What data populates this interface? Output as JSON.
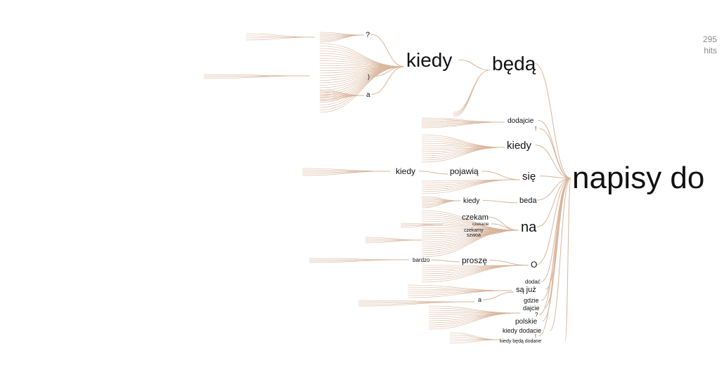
{
  "hits": {
    "count": "295",
    "label": "hits"
  },
  "colors": {
    "edge": "#d8b49a",
    "text": "#111111",
    "hits": "#8a8a8a"
  },
  "root": "napisy do",
  "branches": [
    {
      "id": "beda-diac",
      "text": "będą"
    },
    {
      "id": "kiedy-upper",
      "text": "kiedy"
    },
    {
      "id": "question-upper",
      "text": "?"
    },
    {
      "id": "a-upper",
      "text": "a"
    },
    {
      "id": "paren-upper",
      "text": ")"
    },
    {
      "id": "dodajcie",
      "text": "dodajcie"
    },
    {
      "id": "exclaim",
      "text": "!"
    },
    {
      "id": "kiedy-mid",
      "text": "kiedy"
    },
    {
      "id": "sie",
      "text": "się"
    },
    {
      "id": "pojawia",
      "text": "pojawią"
    },
    {
      "id": "kiedy-left",
      "text": "kiedy"
    },
    {
      "id": "beda",
      "text": "beda"
    },
    {
      "id": "kiedy-small",
      "text": "kiedy"
    },
    {
      "id": "na",
      "text": "na"
    },
    {
      "id": "czekam",
      "text": "czekam"
    },
    {
      "id": "czekamy",
      "text": "czekamy"
    },
    {
      "id": "szwoa",
      "text": "szwoa"
    },
    {
      "id": "czekacie",
      "text": "czekacie"
    },
    {
      "id": "o",
      "text": "O"
    },
    {
      "id": "prosze",
      "text": "proszę"
    },
    {
      "id": "bardzo",
      "text": "bardzo"
    },
    {
      "id": "dodac",
      "text": "dodać"
    },
    {
      "id": "sa-juz",
      "text": "są  już"
    },
    {
      "id": "a-lower",
      "text": "a"
    },
    {
      "id": "gdzie",
      "text": "gdzie"
    },
    {
      "id": "dajcie",
      "text": "dajcie"
    },
    {
      "id": "q-lower",
      "text": "?"
    },
    {
      "id": "polskie",
      "text": "polskie"
    },
    {
      "id": "kiedy-dodacie",
      "text": "kiedy  dodacie"
    },
    {
      "id": "excl-lower",
      "text": "!"
    },
    {
      "id": "kiedy-beda-dodane",
      "text": "kiedy     będą     dodane"
    }
  ]
}
